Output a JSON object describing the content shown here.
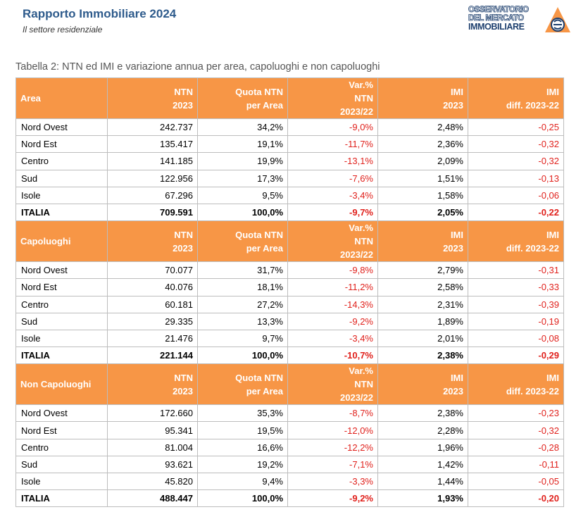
{
  "header": {
    "title": "Rapporto Immobiliare 2024",
    "subtitle": "Il settore residenziale"
  },
  "logo": {
    "line1": "OSSERVATORIO",
    "line2": "DEL MERCATO",
    "line3": "IMMOBILIARE",
    "colors": {
      "primary": "#1d3f6e",
      "accent": "#f79646"
    }
  },
  "caption": "Tabella 2: NTN ed IMI e variazione annua per area, capoluoghi e non capoluoghi",
  "columns": {
    "ntn": [
      "NTN",
      "2023"
    ],
    "quota": [
      "Quota NTN",
      "per Area"
    ],
    "var": [
      "Var.%",
      "NTN",
      "2023/22"
    ],
    "imi": [
      "IMI",
      "2023"
    ],
    "imi_diff": [
      "IMI",
      "diff. 2023-22"
    ]
  },
  "sections": [
    {
      "label": "Area",
      "rows": [
        {
          "name": "Nord Ovest",
          "ntn": "242.737",
          "quota": "34,2%",
          "var": "-9,0%",
          "imi": "2,48%",
          "diff": "-0,25"
        },
        {
          "name": "Nord Est",
          "ntn": "135.417",
          "quota": "19,1%",
          "var": "-11,7%",
          "imi": "2,36%",
          "diff": "-0,32"
        },
        {
          "name": "Centro",
          "ntn": "141.185",
          "quota": "19,9%",
          "var": "-13,1%",
          "imi": "2,09%",
          "diff": "-0,32"
        },
        {
          "name": "Sud",
          "ntn": "122.956",
          "quota": "17,3%",
          "var": "-7,6%",
          "imi": "1,51%",
          "diff": "-0,13"
        },
        {
          "name": "Isole",
          "ntn": "67.296",
          "quota": "9,5%",
          "var": "-3,4%",
          "imi": "1,58%",
          "diff": "-0,06"
        },
        {
          "name": "ITALIA",
          "ntn": "709.591",
          "quota": "100,0%",
          "var": "-9,7%",
          "imi": "2,05%",
          "diff": "-0,22"
        }
      ]
    },
    {
      "label": "Capoluoghi",
      "rows": [
        {
          "name": "Nord Ovest",
          "ntn": "70.077",
          "quota": "31,7%",
          "var": "-9,8%",
          "imi": "2,79%",
          "diff": "-0,31"
        },
        {
          "name": "Nord Est",
          "ntn": "40.076",
          "quota": "18,1%",
          "var": "-11,2%",
          "imi": "2,58%",
          "diff": "-0,33"
        },
        {
          "name": "Centro",
          "ntn": "60.181",
          "quota": "27,2%",
          "var": "-14,3%",
          "imi": "2,31%",
          "diff": "-0,39"
        },
        {
          "name": "Sud",
          "ntn": "29.335",
          "quota": "13,3%",
          "var": "-9,2%",
          "imi": "1,89%",
          "diff": "-0,19"
        },
        {
          "name": "Isole",
          "ntn": "21.476",
          "quota": "9,7%",
          "var": "-3,4%",
          "imi": "2,01%",
          "diff": "-0,08"
        },
        {
          "name": "ITALIA",
          "ntn": "221.144",
          "quota": "100,0%",
          "var": "-10,7%",
          "imi": "2,38%",
          "diff": "-0,29"
        }
      ]
    },
    {
      "label": "Non Capoluoghi",
      "rows": [
        {
          "name": "Nord Ovest",
          "ntn": "172.660",
          "quota": "35,3%",
          "var": "-8,7%",
          "imi": "2,38%",
          "diff": "-0,23"
        },
        {
          "name": "Nord Est",
          "ntn": "95.341",
          "quota": "19,5%",
          "var": "-12,0%",
          "imi": "2,28%",
          "diff": "-0,32"
        },
        {
          "name": "Centro",
          "ntn": "81.004",
          "quota": "16,6%",
          "var": "-12,2%",
          "imi": "1,96%",
          "diff": "-0,28"
        },
        {
          "name": "Sud",
          "ntn": "93.621",
          "quota": "19,2%",
          "var": "-7,1%",
          "imi": "1,42%",
          "diff": "-0,11"
        },
        {
          "name": "Isole",
          "ntn": "45.820",
          "quota": "9,4%",
          "var": "-3,3%",
          "imi": "1,44%",
          "diff": "-0,05"
        },
        {
          "name": "ITALIA",
          "ntn": "488.447",
          "quota": "100,0%",
          "var": "-9,2%",
          "imi": "1,93%",
          "diff": "-0,20"
        }
      ]
    }
  ]
}
